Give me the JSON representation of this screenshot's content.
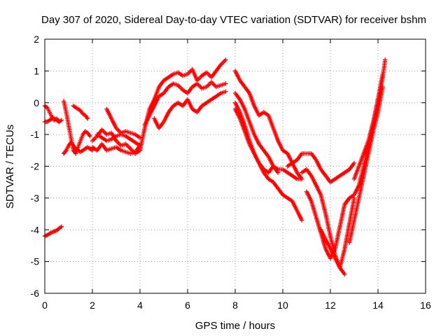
{
  "chart_data": {
    "type": "scatter",
    "title": "Day 307 of 2020, Sidereal Day-to-day VTEC variation (SDTVAR) for receiver bshm",
    "xlabel": "GPS time / hours",
    "ylabel": "SDTVAR / TECUs",
    "xlim": [
      0,
      16
    ],
    "ylim": [
      -6,
      2
    ],
    "xticks": [
      0,
      2,
      4,
      6,
      8,
      10,
      12,
      14,
      16
    ],
    "yticks": [
      -6,
      -5,
      -4,
      -3,
      -2,
      -1,
      0,
      1,
      2
    ],
    "grid": true,
    "marker": "+",
    "series_color": "#ff0000",
    "series": [
      {
        "x": [
          0.0,
          0.1,
          0.2,
          0.3,
          0.4,
          0.5,
          0.6,
          0.7
        ],
        "y": [
          -4.2,
          -4.17,
          -4.12,
          -4.08,
          -4.05,
          -4.02,
          -3.96,
          -3.9
        ]
      },
      {
        "x": [
          0.0,
          0.1,
          0.2,
          0.3,
          0.4,
          0.5,
          0.6,
          0.7
        ],
        "y": [
          -0.1,
          -0.15,
          -0.3,
          -0.45,
          -0.55,
          -0.5,
          -0.6,
          -0.55
        ]
      },
      {
        "x": [
          0.0,
          0.1,
          0.2,
          0.3,
          0.4,
          0.5,
          0.6
        ],
        "y": [
          -0.6,
          -0.6,
          -0.55,
          -0.5,
          -0.5,
          -0.55,
          -0.6
        ]
      },
      {
        "x": [
          0.8,
          0.9,
          1.0,
          1.1,
          1.2,
          1.3,
          1.4,
          1.5,
          1.6,
          1.7,
          1.8,
          1.9
        ],
        "y": [
          0.05,
          -0.3,
          -0.7,
          -1.1,
          -1.5,
          -1.6,
          -1.4,
          -1.2,
          -1.0,
          -0.9,
          -0.95,
          -1.05
        ]
      },
      {
        "x": [
          0.8,
          0.9,
          1.0,
          1.1,
          1.2,
          1.3,
          1.4,
          1.5,
          1.6,
          1.7,
          1.8,
          1.9,
          2.0
        ],
        "y": [
          -1.6,
          -1.5,
          -1.35,
          -1.25,
          -1.35,
          -1.45,
          -1.5,
          -1.55,
          -1.5,
          -1.45,
          -1.4,
          -1.45,
          -1.5
        ]
      },
      {
        "x": [
          1.2,
          1.3,
          1.4,
          1.5,
          1.6,
          1.7,
          1.8
        ],
        "y": [
          -0.1,
          -0.15,
          -0.2,
          -0.25,
          -0.35,
          -0.4,
          -0.5
        ]
      },
      {
        "x": [
          2.0,
          2.2,
          2.4,
          2.6,
          2.8,
          3.0,
          3.2,
          3.4,
          3.6,
          3.8,
          4.0
        ],
        "y": [
          -1.2,
          -1.05,
          -0.85,
          -1.0,
          -0.95,
          -1.2,
          -1.35,
          -1.3,
          -1.45,
          -1.6,
          -1.5
        ]
      },
      {
        "x": [
          2.0,
          2.2,
          2.4,
          2.6,
          2.8,
          3.0,
          3.2,
          3.4,
          3.6,
          3.8,
          4.0
        ],
        "y": [
          -1.4,
          -1.5,
          -1.3,
          -1.5,
          -1.45,
          -1.4,
          -1.5,
          -1.55,
          -1.6,
          -1.55,
          -1.35
        ]
      },
      {
        "x": [
          2.6,
          2.8,
          3.0,
          3.2,
          3.4,
          3.6,
          3.8,
          4.0
        ],
        "y": [
          -0.2,
          -0.5,
          -0.8,
          -0.95,
          -0.9,
          -0.95,
          -1.0,
          -1.1
        ]
      },
      {
        "x": [
          2.2,
          2.4,
          2.6,
          2.8,
          3.0,
          3.2,
          3.4,
          3.6,
          3.8,
          4.0
        ],
        "y": [
          -1.0,
          -1.1,
          -1.2,
          -1.15,
          -1.05,
          -1.0,
          -1.05,
          -1.15,
          -1.25,
          -1.35
        ]
      },
      {
        "x": [
          4.0,
          4.2,
          4.4,
          4.6,
          4.8,
          5.0,
          5.2,
          5.4,
          5.6,
          5.8,
          6.0,
          6.2,
          6.4,
          6.6,
          6.8,
          7.0,
          7.2,
          7.4,
          7.6
        ],
        "y": [
          -1.5,
          -0.8,
          -0.2,
          0.1,
          0.5,
          0.7,
          0.8,
          0.9,
          0.95,
          0.85,
          0.9,
          1.05,
          0.7,
          0.85,
          0.95,
          0.8,
          1.0,
          1.2,
          1.35
        ]
      },
      {
        "x": [
          4.2,
          4.4,
          4.6,
          4.8,
          5.0,
          5.2,
          5.4,
          5.6,
          5.8,
          6.0,
          6.2,
          6.4,
          6.6,
          6.8,
          7.0,
          7.2,
          7.4,
          7.6
        ],
        "y": [
          -0.7,
          -0.4,
          -0.1,
          0.2,
          0.3,
          0.5,
          0.6,
          0.55,
          0.4,
          0.3,
          0.5,
          0.6,
          0.45,
          0.5,
          0.65,
          0.5,
          0.55,
          0.6
        ]
      },
      {
        "x": [
          4.6,
          4.8,
          5.0,
          5.2,
          5.4,
          5.6,
          5.8,
          6.0,
          6.2,
          6.4,
          6.6,
          6.8,
          7.0,
          7.2,
          7.4,
          7.6
        ],
        "y": [
          -0.5,
          -0.8,
          -0.6,
          -0.3,
          -0.1,
          0.0,
          -0.1,
          0.1,
          -0.2,
          -0.3,
          -0.1,
          0.0,
          0.1,
          0.2,
          0.3,
          0.35
        ]
      },
      {
        "x": [
          8.0,
          8.2,
          8.4,
          8.6,
          8.8,
          9.0,
          9.2,
          9.4,
          9.6,
          9.8,
          10.0,
          10.2,
          10.4,
          10.6,
          10.8
        ],
        "y": [
          0.0,
          -0.3,
          -0.7,
          -1.2,
          -1.6,
          -1.9,
          -2.2,
          -2.4,
          -2.5,
          -2.7,
          -2.9,
          -3.0,
          -3.1,
          -3.4,
          -3.7
        ]
      },
      {
        "x": [
          8.0,
          8.2,
          8.4,
          8.6,
          8.8,
          9.0,
          9.2,
          9.4,
          9.6,
          9.8,
          10.0,
          10.2,
          10.4,
          10.6,
          10.8
        ],
        "y": [
          0.3,
          0.1,
          -0.2,
          -0.6,
          -1.0,
          -1.3,
          -1.5,
          -1.7,
          -2.0,
          -2.1,
          -2.1,
          -2.2,
          -2.3,
          -2.4,
          -2.4
        ]
      },
      {
        "x": [
          8.0,
          8.2,
          8.4,
          8.6,
          8.8,
          9.0,
          9.2,
          9.4,
          9.6,
          9.8,
          10.0,
          10.2,
          10.4,
          10.6,
          10.8
        ],
        "y": [
          1.0,
          0.7,
          0.5,
          0.3,
          -0.1,
          -0.4,
          -0.3,
          -0.4,
          -0.8,
          -1.2,
          -1.5,
          -1.6,
          -1.9,
          -2.2,
          -2.4
        ]
      },
      {
        "x": [
          8.0,
          8.2,
          8.4,
          8.6,
          8.8,
          9.0,
          9.2,
          9.4,
          9.6,
          9.8
        ],
        "y": [
          -0.2,
          -0.5,
          -0.9,
          -1.3,
          -1.6,
          -1.9,
          -2.1,
          -2.2,
          -2.0,
          -2.2
        ]
      },
      {
        "x": [
          10.2,
          10.4,
          10.6,
          10.8,
          11.0,
          11.2,
          11.4,
          11.6,
          11.8,
          12.0,
          12.2,
          12.4,
          12.6,
          12.8,
          13.0
        ],
        "y": [
          -2.0,
          -1.9,
          -1.8,
          -1.6,
          -1.6,
          -1.6,
          -1.8,
          -2.1,
          -2.3,
          -2.5,
          -2.4,
          -2.3,
          -2.2,
          -2.1,
          -1.9
        ]
      },
      {
        "x": [
          10.8,
          11.0,
          11.2,
          11.4,
          11.6,
          11.8,
          12.0,
          12.2,
          12.4,
          12.6,
          12.8,
          13.0
        ],
        "y": [
          -2.2,
          -2.1,
          -2.3,
          -2.6,
          -2.9,
          -3.5,
          -4.2,
          -4.8,
          -5.2,
          -4.6,
          -3.8,
          -3.0
        ]
      },
      {
        "x": [
          11.0,
          11.2,
          11.4,
          11.6,
          11.8,
          12.0,
          12.2,
          12.4,
          12.6,
          12.8
        ],
        "y": [
          -2.8,
          -3.1,
          -3.6,
          -4.1,
          -4.6,
          -4.9,
          -4.6,
          -3.9,
          -3.2,
          -3.0
        ]
      },
      {
        "x": [
          11.6,
          11.8,
          12.0,
          12.2,
          12.4,
          12.6
        ],
        "y": [
          -4.0,
          -4.3,
          -4.6,
          -4.9,
          -5.2,
          -5.4
        ]
      },
      {
        "x": [
          12.8,
          13.0,
          13.2,
          13.4,
          13.6,
          13.8,
          14.0,
          14.2
        ],
        "y": [
          -4.4,
          -3.7,
          -3.0,
          -2.3,
          -1.6,
          -0.9,
          -0.3,
          0.5
        ]
      },
      {
        "x": [
          12.6,
          12.8,
          13.0,
          13.2,
          13.4,
          13.6,
          13.8,
          14.0,
          14.2
        ],
        "y": [
          -3.2,
          -3.0,
          -2.9,
          -2.6,
          -2.0,
          -1.4,
          -0.7,
          0.1,
          0.9
        ]
      },
      {
        "x": [
          13.0,
          13.2,
          13.4,
          13.6,
          13.8,
          14.0,
          14.2,
          14.3
        ],
        "y": [
          -2.4,
          -2.0,
          -1.6,
          -1.2,
          -0.6,
          0.1,
          0.8,
          1.35
        ]
      }
    ]
  }
}
